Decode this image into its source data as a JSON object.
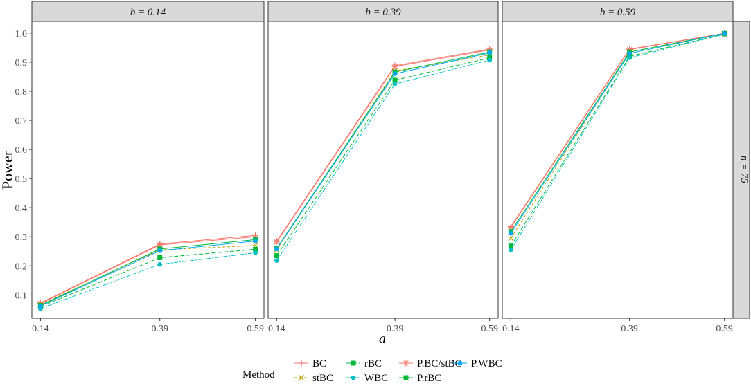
{
  "chart_data": {
    "type": "line",
    "title": "",
    "xlabel": "a",
    "ylabel": "Power",
    "row_strip": "n = 75",
    "x": [
      0.14,
      0.39,
      0.59
    ],
    "x_tick_labels": [
      "0.14",
      "0.39",
      "0.59"
    ],
    "ylim": [
      0.02,
      1.04
    ],
    "y_ticks": [
      0.1,
      0.2,
      0.3,
      0.4,
      0.5,
      0.6,
      0.7,
      0.8,
      0.9,
      1.0
    ],
    "y_tick_labels": [
      "0.1",
      "0.2",
      "0.3",
      "0.4",
      "0.5",
      "0.6",
      "0.7",
      "0.8",
      "0.9",
      "1.0"
    ],
    "grid": false,
    "legend_title": "Method",
    "legend_position": "bottom",
    "series_styles": [
      {
        "name": "BC",
        "color": "#F8766D",
        "marker": "plus",
        "dash": "none"
      },
      {
        "name": "stBC",
        "color": "#B79F00",
        "marker": "cross",
        "dash": "4,3"
      },
      {
        "name": "rBC",
        "color": "#00BA38",
        "marker": "square",
        "dash": "6,3"
      },
      {
        "name": "WBC",
        "color": "#00BFC4",
        "marker": "circle",
        "dash": "6,2,2,2"
      },
      {
        "name": "P.BC/stBC",
        "color": "#F8766D",
        "marker": "asterisk",
        "dash": "none"
      },
      {
        "name": "P.rBC",
        "color": "#00BA38",
        "marker": "square",
        "dash": "none"
      },
      {
        "name": "P.WBC",
        "color": "#00A9FF",
        "marker": "circle",
        "dash": "none"
      }
    ],
    "panels": [
      {
        "strip": "b = 0.14",
        "series": [
          {
            "name": "BC",
            "values": [
              0.072,
              0.275,
              0.305
            ]
          },
          {
            "name": "stBC",
            "values": [
              0.067,
              0.255,
              0.27
            ]
          },
          {
            "name": "rBC",
            "values": [
              0.06,
              0.228,
              0.257
            ]
          },
          {
            "name": "WBC",
            "values": [
              0.053,
              0.205,
              0.245
            ]
          },
          {
            "name": "P.BC/stBC",
            "values": [
              0.07,
              0.272,
              0.3
            ]
          },
          {
            "name": "P.rBC",
            "values": [
              0.064,
              0.258,
              0.29
            ]
          },
          {
            "name": "P.WBC",
            "values": [
              0.062,
              0.252,
              0.285
            ]
          }
        ]
      },
      {
        "strip": "b = 0.39",
        "series": [
          {
            "name": "BC",
            "values": [
              0.285,
              0.888,
              0.945
            ]
          },
          {
            "name": "stBC",
            "values": [
              0.255,
              0.87,
              0.925
            ]
          },
          {
            "name": "rBC",
            "values": [
              0.235,
              0.838,
              0.915
            ]
          },
          {
            "name": "WBC",
            "values": [
              0.218,
              0.825,
              0.907
            ]
          },
          {
            "name": "P.BC/stBC",
            "values": [
              0.282,
              0.885,
              0.942
            ]
          },
          {
            "name": "P.rBC",
            "values": [
              0.26,
              0.866,
              0.935
            ]
          },
          {
            "name": "P.WBC",
            "values": [
              0.258,
              0.86,
              0.932
            ]
          }
        ]
      },
      {
        "strip": "b = 0.59",
        "series": [
          {
            "name": "BC",
            "values": [
              0.335,
              0.945,
              0.999
            ]
          },
          {
            "name": "stBC",
            "values": [
              0.295,
              0.935,
              0.998
            ]
          },
          {
            "name": "rBC",
            "values": [
              0.268,
              0.92,
              0.997
            ]
          },
          {
            "name": "WBC",
            "values": [
              0.255,
              0.915,
              0.996
            ]
          },
          {
            "name": "P.BC/stBC",
            "values": [
              0.332,
              0.943,
              0.999
            ]
          },
          {
            "name": "P.rBC",
            "values": [
              0.318,
              0.935,
              0.999
            ]
          },
          {
            "name": "P.WBC",
            "values": [
              0.312,
              0.93,
              0.999
            ]
          }
        ]
      }
    ]
  }
}
